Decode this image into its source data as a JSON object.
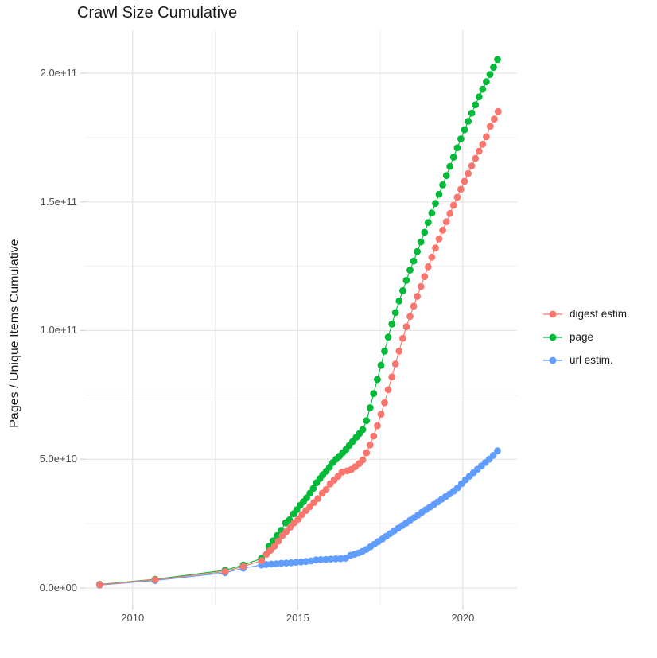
{
  "title": "Crawl Size Cumulative",
  "chart_data": {
    "type": "scatter",
    "title": "Crawl Size Cumulative",
    "xlabel": "",
    "ylabel": "Pages / Unique Items Cumulative",
    "y_unit": "absolute value = shown value x 1e9",
    "xlim": [
      2008.56,
      2021.64
    ],
    "ylim": [
      -6.5,
      216.7
    ],
    "grid": true,
    "legend_position": "right",
    "x_ticks": [
      {
        "label": "2010",
        "value": 2010
      },
      {
        "label": "2015",
        "value": 2015
      },
      {
        "label": "2020",
        "value": 2020
      }
    ],
    "x_minor": [
      2012.5,
      2017.5
    ],
    "y_ticks": [
      {
        "label": "0.0e+00",
        "value": 0
      },
      {
        "label": "5.0e+10",
        "value": 50
      },
      {
        "label": "1.0e+11",
        "value": 100
      },
      {
        "label": "1.5e+11",
        "value": 150
      },
      {
        "label": "2.0e+11",
        "value": 200
      }
    ],
    "y_minor": [
      25,
      75,
      125,
      175
    ],
    "draw_order": [
      1,
      2,
      0
    ],
    "series": [
      {
        "name": "digest estim.",
        "color": "#F8766D",
        "points": [
          [
            2009.0,
            1.3
          ],
          [
            2010.68,
            3.2
          ],
          [
            2012.8,
            6.4
          ],
          [
            2013.35,
            8.4
          ],
          [
            2013.9,
            10.6
          ],
          [
            2014.05,
            13.1
          ],
          [
            2014.17,
            14.6
          ],
          [
            2014.29,
            16.2
          ],
          [
            2014.41,
            18.2
          ],
          [
            2014.53,
            20.3
          ],
          [
            2014.65,
            21.9
          ],
          [
            2014.77,
            23.6
          ],
          [
            2014.89,
            25.3
          ],
          [
            2015.01,
            26.7
          ],
          [
            2015.13,
            28.5
          ],
          [
            2015.25,
            30.1
          ],
          [
            2015.37,
            31.6
          ],
          [
            2015.49,
            33.2
          ],
          [
            2015.61,
            34.7
          ],
          [
            2015.74,
            36.8
          ],
          [
            2015.86,
            38.3
          ],
          [
            2015.98,
            40.4
          ],
          [
            2016.1,
            41.9
          ],
          [
            2016.22,
            43.4
          ],
          [
            2016.34,
            45
          ],
          [
            2016.5,
            45.5
          ],
          [
            2016.62,
            46
          ],
          [
            2016.74,
            47.1
          ],
          [
            2016.86,
            48.3
          ],
          [
            2016.97,
            49.7
          ],
          [
            2017.08,
            52.5
          ],
          [
            2017.19,
            55.5
          ],
          [
            2017.3,
            59
          ],
          [
            2017.41,
            63
          ],
          [
            2017.52,
            67.5
          ],
          [
            2017.63,
            72
          ],
          [
            2017.74,
            77
          ],
          [
            2017.85,
            82
          ],
          [
            2017.96,
            87
          ],
          [
            2018.07,
            92
          ],
          [
            2018.18,
            97
          ],
          [
            2018.29,
            101.5
          ],
          [
            2018.4,
            105.5
          ],
          [
            2018.51,
            109.5
          ],
          [
            2018.62,
            113.3
          ],
          [
            2018.73,
            117.1
          ],
          [
            2018.84,
            121
          ],
          [
            2018.95,
            124.8
          ],
          [
            2019.06,
            128.5
          ],
          [
            2019.17,
            132.1
          ],
          [
            2019.28,
            135.6
          ],
          [
            2019.39,
            139
          ],
          [
            2019.5,
            142.3
          ],
          [
            2019.61,
            145.5
          ],
          [
            2019.72,
            148.7
          ],
          [
            2019.83,
            151.8
          ],
          [
            2019.94,
            154.9
          ],
          [
            2020.05,
            158
          ],
          [
            2020.16,
            161
          ],
          [
            2020.27,
            164
          ],
          [
            2020.38,
            166.9
          ],
          [
            2020.49,
            169.7
          ],
          [
            2020.6,
            172.4
          ],
          [
            2020.71,
            175.3
          ],
          [
            2020.83,
            179.4
          ],
          [
            2020.95,
            182.2
          ],
          [
            2021.07,
            185.1
          ]
        ]
      },
      {
        "name": "page",
        "color": "#00BA38",
        "points": [
          [
            2009.0,
            1.4
          ],
          [
            2010.68,
            3.4
          ],
          [
            2012.8,
            6.9
          ],
          [
            2013.35,
            8.9
          ],
          [
            2013.9,
            11.5
          ],
          [
            2014.13,
            16.2
          ],
          [
            2014.25,
            18.3
          ],
          [
            2014.37,
            20.3
          ],
          [
            2014.49,
            22.4
          ],
          [
            2014.63,
            25.3
          ],
          [
            2014.75,
            26.5
          ],
          [
            2014.87,
            28.8
          ],
          [
            2014.97,
            30.4
          ],
          [
            2015.07,
            32.1
          ],
          [
            2015.17,
            33.5
          ],
          [
            2015.27,
            35
          ],
          [
            2015.37,
            36.8
          ],
          [
            2015.47,
            38.7
          ],
          [
            2015.57,
            40.9
          ],
          [
            2015.67,
            42.5
          ],
          [
            2015.76,
            44
          ],
          [
            2015.86,
            45.3
          ],
          [
            2015.96,
            46.9
          ],
          [
            2016.06,
            48.7
          ],
          [
            2016.16,
            50
          ],
          [
            2016.26,
            51.2
          ],
          [
            2016.36,
            52.5
          ],
          [
            2016.46,
            53.8
          ],
          [
            2016.56,
            55.4
          ],
          [
            2016.66,
            56.9
          ],
          [
            2016.77,
            58.5
          ],
          [
            2016.87,
            60
          ],
          [
            2016.97,
            61.5
          ],
          [
            2017.08,
            65
          ],
          [
            2017.19,
            70
          ],
          [
            2017.3,
            75.5
          ],
          [
            2017.41,
            81
          ],
          [
            2017.52,
            86.5
          ],
          [
            2017.63,
            92
          ],
          [
            2017.74,
            97.5
          ],
          [
            2017.85,
            102.5
          ],
          [
            2017.96,
            107
          ],
          [
            2018.07,
            111.5
          ],
          [
            2018.18,
            115.5
          ],
          [
            2018.29,
            119.5
          ],
          [
            2018.4,
            123.5
          ],
          [
            2018.51,
            127
          ],
          [
            2018.62,
            130.7
          ],
          [
            2018.73,
            134.4
          ],
          [
            2018.84,
            138.2
          ],
          [
            2018.95,
            142
          ],
          [
            2019.06,
            145.7
          ],
          [
            2019.17,
            149.4
          ],
          [
            2019.28,
            153
          ],
          [
            2019.39,
            156.6
          ],
          [
            2019.5,
            160.2
          ],
          [
            2019.61,
            163.8
          ],
          [
            2019.72,
            167.4
          ],
          [
            2019.83,
            171
          ],
          [
            2019.94,
            174.5
          ],
          [
            2020.05,
            178
          ],
          [
            2020.16,
            181.3
          ],
          [
            2020.27,
            184.5
          ],
          [
            2020.38,
            187.7
          ],
          [
            2020.49,
            190.8
          ],
          [
            2020.6,
            193.8
          ],
          [
            2020.71,
            196.7
          ],
          [
            2020.82,
            199.5
          ],
          [
            2020.93,
            202.3
          ],
          [
            2021.05,
            205.3
          ]
        ]
      },
      {
        "name": "url estim.",
        "color": "#619CFF",
        "points": [
          [
            2009.0,
            1.1
          ],
          [
            2010.68,
            2.9
          ],
          [
            2012.8,
            5.9
          ],
          [
            2013.35,
            7.7
          ],
          [
            2013.9,
            8.9
          ],
          [
            2014.05,
            9.1
          ],
          [
            2014.2,
            9.3
          ],
          [
            2014.35,
            9.4
          ],
          [
            2014.5,
            9.6
          ],
          [
            2014.65,
            9.7
          ],
          [
            2014.8,
            9.8
          ],
          [
            2014.95,
            10
          ],
          [
            2015.1,
            10.1
          ],
          [
            2015.25,
            10.3
          ],
          [
            2015.4,
            10.5
          ],
          [
            2015.55,
            10.9
          ],
          [
            2015.7,
            11
          ],
          [
            2015.85,
            11.1
          ],
          [
            2016.0,
            11.2
          ],
          [
            2016.15,
            11.3
          ],
          [
            2016.3,
            11.4
          ],
          [
            2016.45,
            11.6
          ],
          [
            2016.6,
            12.7
          ],
          [
            2016.72,
            13.1
          ],
          [
            2016.84,
            13.6
          ],
          [
            2016.96,
            14.2
          ],
          [
            2017.08,
            15
          ],
          [
            2017.2,
            16
          ],
          [
            2017.32,
            17
          ],
          [
            2017.44,
            18
          ],
          [
            2017.56,
            19
          ],
          [
            2017.68,
            20.1
          ],
          [
            2017.8,
            21.1
          ],
          [
            2017.92,
            22.2
          ],
          [
            2018.04,
            23.2
          ],
          [
            2018.16,
            24.2
          ],
          [
            2018.28,
            25.2
          ],
          [
            2018.4,
            26.3
          ],
          [
            2018.52,
            27.3
          ],
          [
            2018.64,
            28.3
          ],
          [
            2018.76,
            29.4
          ],
          [
            2018.88,
            30.4
          ],
          [
            2019.0,
            31.4
          ],
          [
            2019.12,
            32.4
          ],
          [
            2019.24,
            33.4
          ],
          [
            2019.36,
            34.5
          ],
          [
            2019.48,
            35.5
          ],
          [
            2019.6,
            36.5
          ],
          [
            2019.72,
            37.6
          ],
          [
            2019.84,
            38.9
          ],
          [
            2019.96,
            40.5
          ],
          [
            2020.08,
            42
          ],
          [
            2020.2,
            43.4
          ],
          [
            2020.32,
            44.8
          ],
          [
            2020.44,
            46.1
          ],
          [
            2020.56,
            47.4
          ],
          [
            2020.68,
            48.7
          ],
          [
            2020.8,
            50
          ],
          [
            2020.92,
            51.5
          ],
          [
            2021.05,
            53.3
          ]
        ]
      }
    ],
    "style": {
      "background": "#ffffff",
      "grid_major_color": "#e4e4e4",
      "grid_minor_color": "#efefef",
      "tick_color": "#d4d4d4",
      "axis_text_color": "#4d4d4d",
      "title_color": "#1a1a1a",
      "point_radius": 4.4
    }
  },
  "legend": {
    "items": [
      {
        "label": "digest estim."
      },
      {
        "label": "page"
      },
      {
        "label": "url estim."
      }
    ]
  }
}
